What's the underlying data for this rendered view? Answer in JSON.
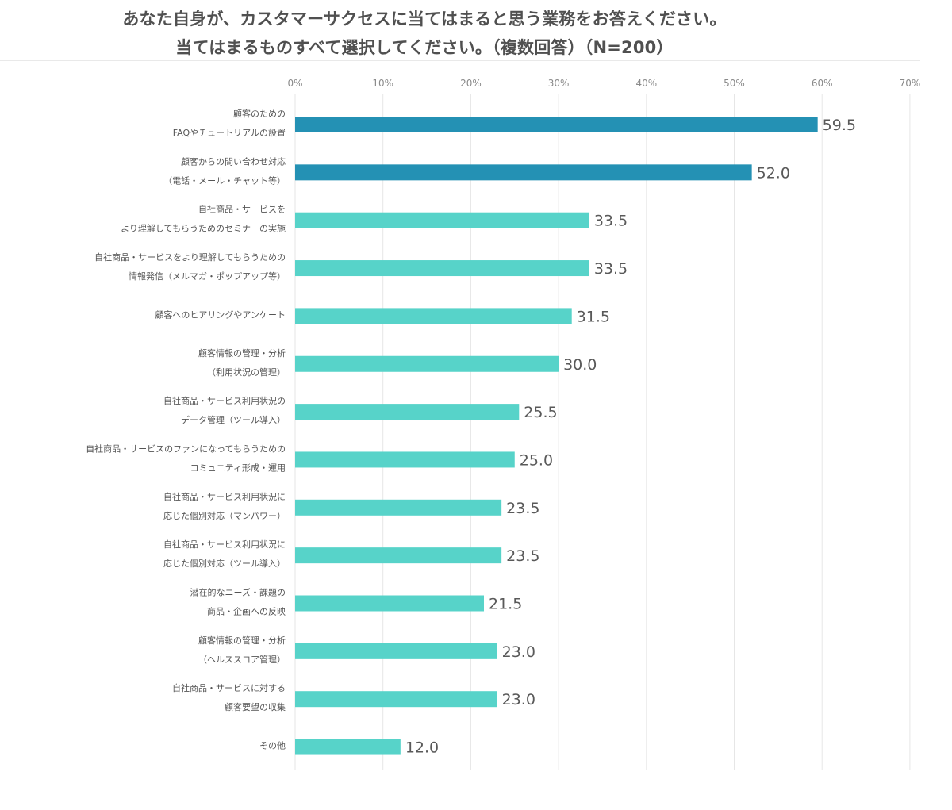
{
  "chart_data": {
    "type": "bar",
    "orientation": "horizontal",
    "title_lines": [
      "あなた自身が、カスタマーサクセスに当てはまると思う業務をお答えください。",
      "当てはまるものすべて選択してください。（複数回答）（N=200）"
    ],
    "xlim": [
      0,
      70
    ],
    "x_ticks": [
      "0%",
      "10%",
      "20%",
      "30%",
      "40%",
      "50%",
      "60%",
      "70%"
    ],
    "grid": true,
    "colors": {
      "highlight": "#2491b4",
      "default": "#57d3c9",
      "grid": "#e6e6e6"
    },
    "categories": [
      [
        "顧客のための",
        "FAQやチュートリアルの設置"
      ],
      [
        "顧客からの問い合わせ対応",
        "（電話・メール・チャット等）"
      ],
      [
        "自社商品・サービスを",
        "より理解してもらうためのセミナーの実施"
      ],
      [
        "自社商品・サービスをより理解してもらうための",
        "情報発信（メルマガ・ポップアップ等）"
      ],
      [
        "顧客へのヒアリングやアンケート"
      ],
      [
        "顧客情報の管理・分析",
        "（利用状況の管理）"
      ],
      [
        "自社商品・サービス利用状況の",
        "データ管理（ツール導入）"
      ],
      [
        "自社商品・サービスのファンになってもらうための",
        "コミュニティ形成・運用"
      ],
      [
        "自社商品・サービス利用状況に",
        "応じた個別対応（マンパワー）"
      ],
      [
        "自社商品・サービス利用状況に",
        "応じた個別対応（ツール導入）"
      ],
      [
        "潜在的なニーズ・課題の",
        "商品・企画への反映"
      ],
      [
        "顧客情報の管理・分析",
        "（ヘルススコア管理）"
      ],
      [
        "自社商品・サービスに対する",
        "顧客要望の収集"
      ],
      [
        "その他"
      ]
    ],
    "values": [
      59.5,
      52.0,
      33.5,
      33.5,
      31.5,
      30.0,
      25.5,
      25.0,
      23.5,
      23.5,
      21.5,
      23.0,
      23.0,
      12.0
    ],
    "value_labels": [
      "59.5",
      "52.0",
      "33.5",
      "33.5",
      "31.5",
      "30.0",
      "25.5",
      "25.0",
      "23.5",
      "23.5",
      "21.5",
      "23.0",
      "23.0",
      "12.0"
    ],
    "highlighted": [
      true,
      true,
      false,
      false,
      false,
      false,
      false,
      false,
      false,
      false,
      false,
      false,
      false,
      false
    ]
  }
}
